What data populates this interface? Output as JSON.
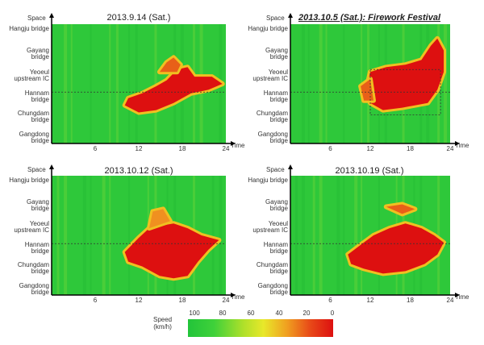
{
  "chart_data": [
    {
      "type": "heatmap",
      "title": "2013.9.14 (Sat.)",
      "xlabel": "Time",
      "ylabel": "Space",
      "xticks": [
        "6",
        "12",
        "18",
        "24"
      ],
      "xlim": [
        0,
        24
      ],
      "ylocations": [
        "Hangju bridge",
        "Gayang bridge",
        "Yeoeul upstream IC",
        "Hannam bridge",
        "Chungdam bridge",
        "Gangdong bridge"
      ],
      "congestion_regions": [
        {
          "time": [
            10,
            23
          ],
          "space": "Yeoeul upstream IC to Chungdam bridge",
          "speed_kmh": [
            0,
            20
          ]
        }
      ]
    },
    {
      "type": "heatmap",
      "title": "2013.10.5 (Sat.): Firework Festival",
      "xlabel": "Time",
      "ylabel": "Space",
      "xticks": [
        "6",
        "12",
        "18",
        "24"
      ],
      "xlim": [
        0,
        24
      ],
      "ylocations": [
        "Hangju bridge",
        "Gayang bridge",
        "Yeoeul upstream IC",
        "Hannam bridge",
        "Chungdam bridge",
        "Gangdong bridge"
      ],
      "congestion_regions": [
        {
          "time": [
            12,
            24
          ],
          "space": "Gayang bridge to Chungdam bridge",
          "speed_kmh": [
            0,
            20
          ]
        }
      ]
    },
    {
      "type": "heatmap",
      "title": "2013.10.12 (Sat.)",
      "xlabel": "Time",
      "ylabel": "Space",
      "xticks": [
        "6",
        "12",
        "18",
        "24"
      ],
      "xlim": [
        0,
        24
      ],
      "ylocations": [
        "Hangju bridge",
        "Gayang bridge",
        "Yeoeul upstream IC",
        "Hannam bridge",
        "Chungdam bridge",
        "Gangdong bridge"
      ],
      "congestion_regions": [
        {
          "time": [
            11,
            23
          ],
          "space": "Yeoeul upstream IC to Chungdam bridge",
          "speed_kmh": [
            0,
            20
          ]
        }
      ]
    },
    {
      "type": "heatmap",
      "title": "2013.10.19 (Sat.)",
      "xlabel": "Time",
      "ylabel": "Space",
      "xticks": [
        "6",
        "12",
        "18",
        "24"
      ],
      "xlim": [
        0,
        24
      ],
      "ylocations": [
        "Hangju bridge",
        "Gayang bridge",
        "Yeoeul upstream IC",
        "Hannam bridge",
        "Chungdam bridge",
        "Gangdong bridge"
      ],
      "congestion_regions": [
        {
          "time": [
            13,
            23
          ],
          "space": "Hannam bridge to Chungdam bridge",
          "speed_kmh": [
            0,
            20
          ]
        }
      ]
    }
  ],
  "legend": {
    "label_line1": "Speed",
    "label_line2": "(km/h)",
    "ticks": [
      "100",
      "80",
      "60",
      "40",
      "20",
      "0"
    ]
  },
  "colors": {
    "free_flow": "#2ec83a",
    "moderate": "#e8e82a",
    "congested": "#dd1010"
  }
}
